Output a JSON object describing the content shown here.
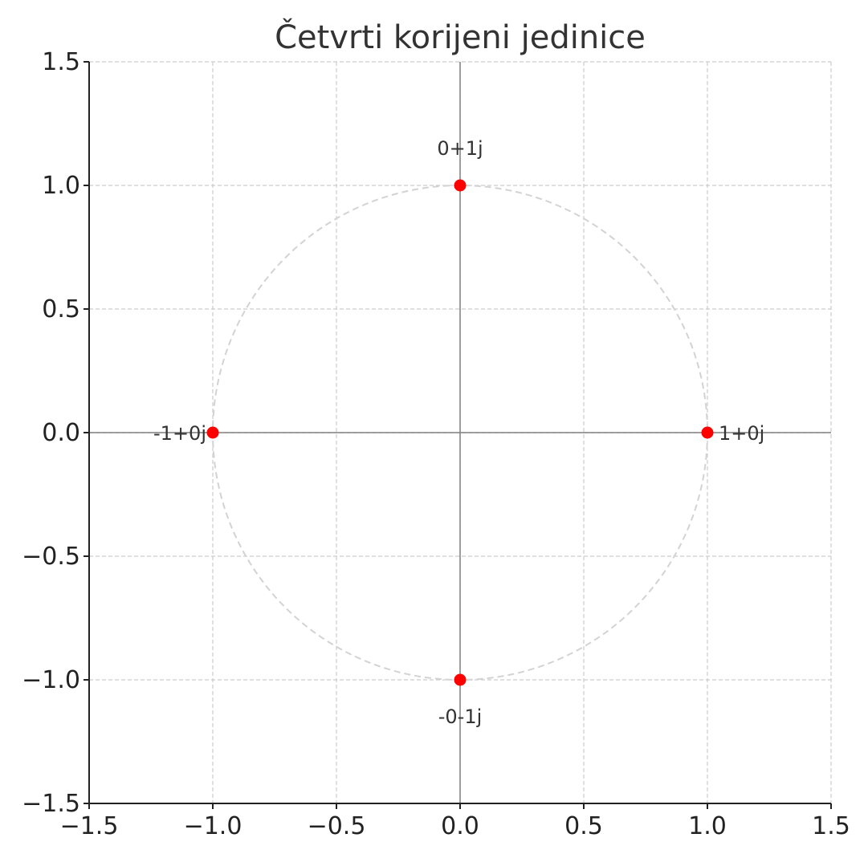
{
  "chart_data": {
    "type": "scatter",
    "title": "Četvrti korijeni jedinice",
    "xlabel": "",
    "ylabel": "",
    "xlim": [
      -1.5,
      1.5
    ],
    "ylim": [
      -1.5,
      1.5
    ],
    "grid": true,
    "xticks": [
      -1.5,
      -1.0,
      -0.5,
      0.0,
      0.5,
      1.0,
      1.5
    ],
    "yticks": [
      -1.5,
      -1.0,
      -0.5,
      0.0,
      0.5,
      1.0,
      1.5
    ],
    "xtick_labels": [
      "−1.5",
      "−1.0",
      "−0.5",
      "0.0",
      "0.5",
      "1.0",
      "1.5"
    ],
    "ytick_labels": [
      "−1.5",
      "−1.0",
      "−0.5",
      "0.0",
      "0.5",
      "1.0",
      "1.5"
    ],
    "unit_circle": {
      "center": [
        0,
        0
      ],
      "radius": 1,
      "style": "dashed",
      "color": "#d3d3d3"
    },
    "points": [
      {
        "x": 1,
        "y": 0,
        "label": "1+0j",
        "label_position": "right"
      },
      {
        "x": 0,
        "y": 1,
        "label": "0+1j",
        "label_position": "above"
      },
      {
        "x": -1,
        "y": 0,
        "label": "-1+0j",
        "label_position": "left"
      },
      {
        "x": 0,
        "y": -1,
        "label": "-0-1j",
        "label_position": "below"
      }
    ],
    "colors": {
      "point": "#ff0000",
      "grid": "#cccccc",
      "axis_lines": "#808080",
      "frame": "#222222"
    }
  }
}
